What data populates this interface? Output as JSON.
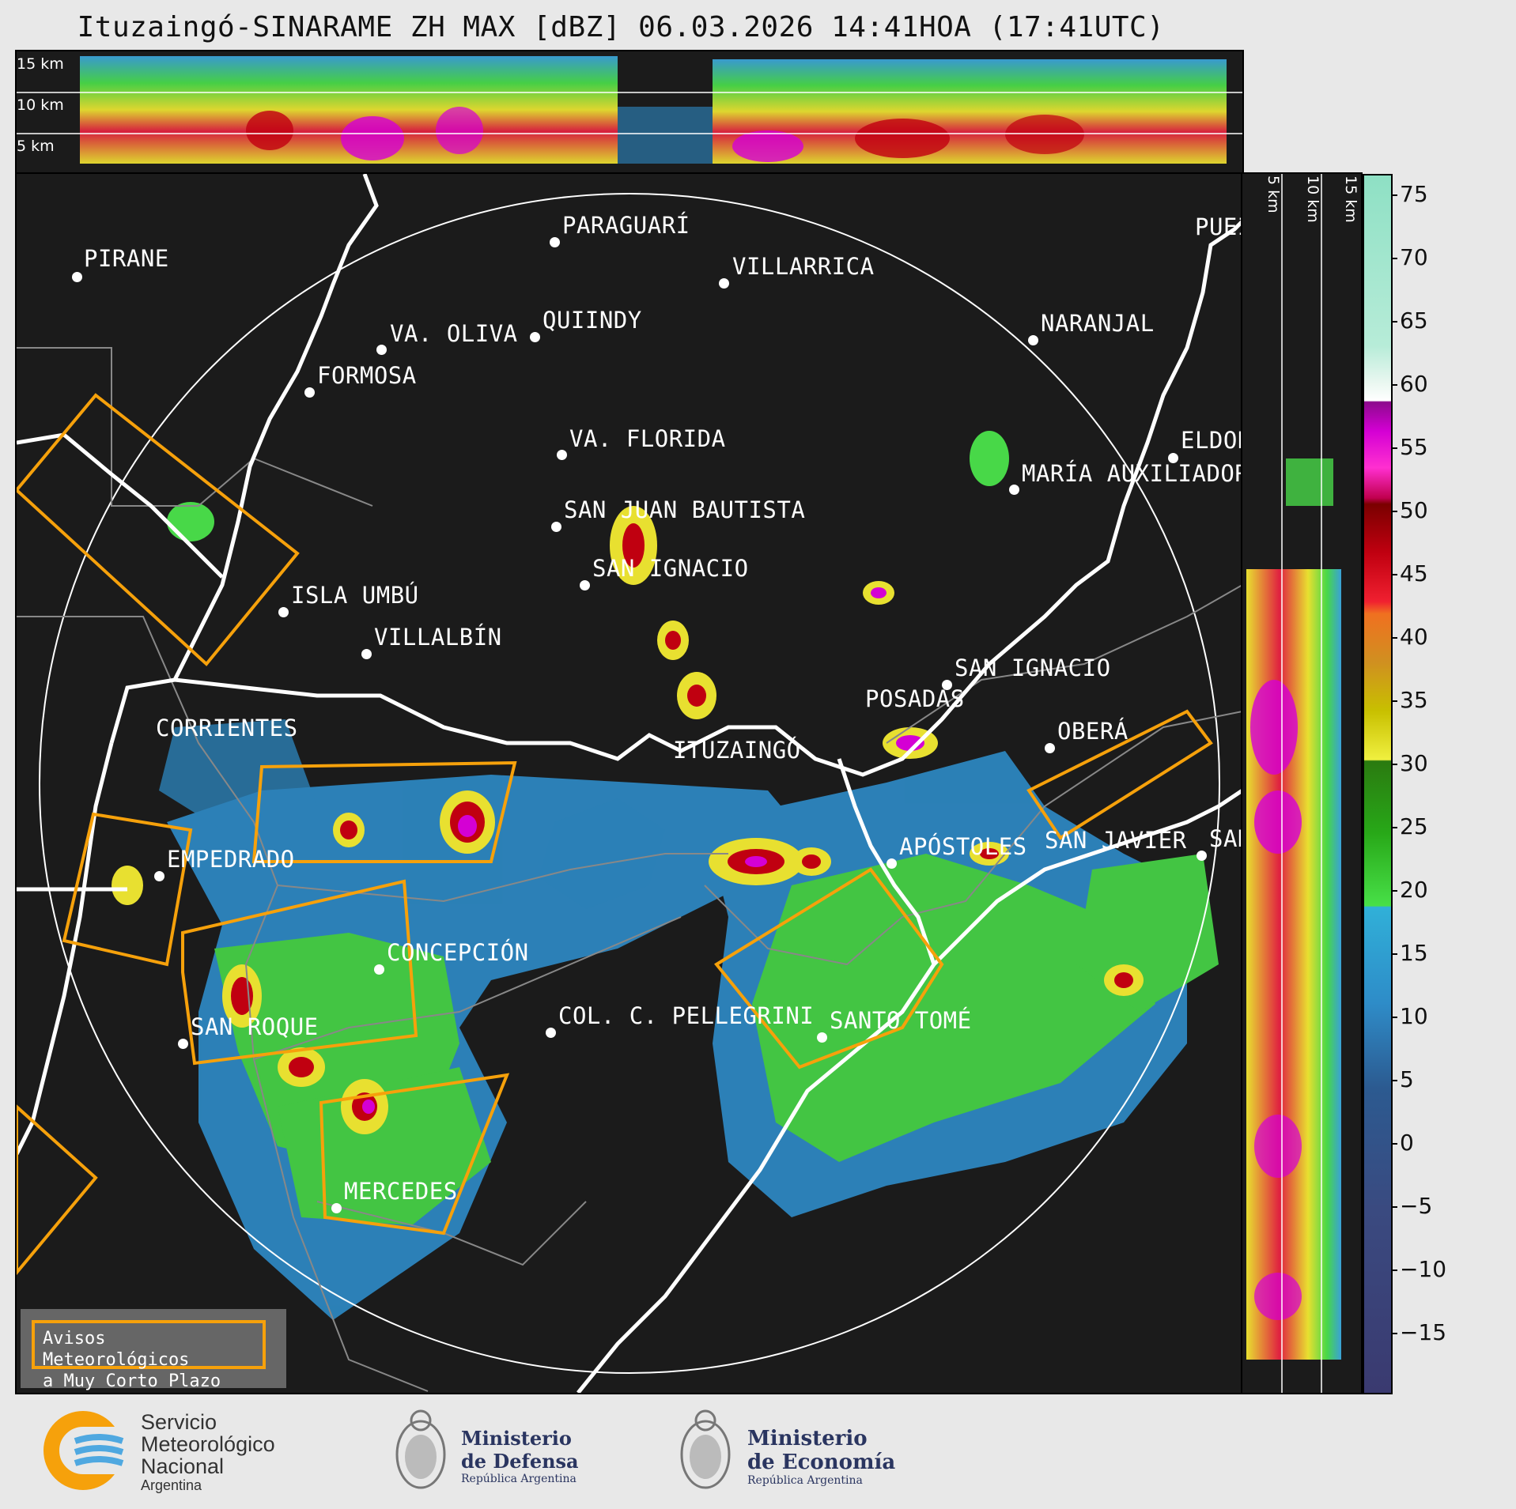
{
  "title": "Ituzaingó-SINARAME ZH MAX [dBZ] 06.03.2026 14:41HOA (17:41UTC)",
  "height_labels_top": [
    "15 km",
    "10 km",
    "5 km"
  ],
  "height_labels_side": [
    "5 km",
    "10 km",
    "15 km"
  ],
  "cities": [
    {
      "name": "PIRANE"
    },
    {
      "name": "PARAGUARÍ"
    },
    {
      "name": "VILLARRICA"
    },
    {
      "name": "VA. OLIVA"
    },
    {
      "name": "QUIINDY"
    },
    {
      "name": "NARANJAL"
    },
    {
      "name": "FORMOSA"
    },
    {
      "name": "VA. FLORIDA"
    },
    {
      "name": "ELDOR"
    },
    {
      "name": "MARÍA AUXILIADOR"
    },
    {
      "name": "SAN JUAN BAUTISTA"
    },
    {
      "name": "SAN IGNACIO"
    },
    {
      "name": "ISLA UMBÚ"
    },
    {
      "name": "VILLALBÍN"
    },
    {
      "name": "SAN IGNACIO"
    },
    {
      "name": "POSADAS"
    },
    {
      "name": "CORRIENTES"
    },
    {
      "name": "OBERÁ"
    },
    {
      "name": "ITUZAINGÓ"
    },
    {
      "name": "APÓSTOLES"
    },
    {
      "name": "SAN JAVIER"
    },
    {
      "name": "SAN"
    },
    {
      "name": "EMPEDRADO"
    },
    {
      "name": "CONCEPCIÓN"
    },
    {
      "name": "COL. C. PELLEGRINI"
    },
    {
      "name": "SANTO TOMÉ"
    },
    {
      "name": "SAN ROQUE"
    },
    {
      "name": "MERCEDES"
    },
    {
      "name": "PUEI"
    }
  ],
  "colorbar": {
    "labels": [
      "75",
      "70",
      "65",
      "60",
      "55",
      "50",
      "45",
      "40",
      "35",
      "30",
      "25",
      "20",
      "15",
      "10",
      "5",
      "0",
      "−5",
      "−10",
      "−15"
    ],
    "warning_color": "#f6a10b"
  },
  "legend": {
    "line1": "Avisos Meteorológicos",
    "line2": "a Muy Corto Plazo"
  },
  "logos": {
    "smn": {
      "line1": "Servicio",
      "line2": "Meteorológico",
      "line3": "Nacional",
      "line4": "Argentina"
    },
    "defensa": {
      "line1": "Ministerio",
      "line2": "de Defensa",
      "line3": "República Argentina"
    },
    "economia": {
      "line1": "Ministerio",
      "line2": "de Economía",
      "line3": "República Argentina"
    }
  }
}
